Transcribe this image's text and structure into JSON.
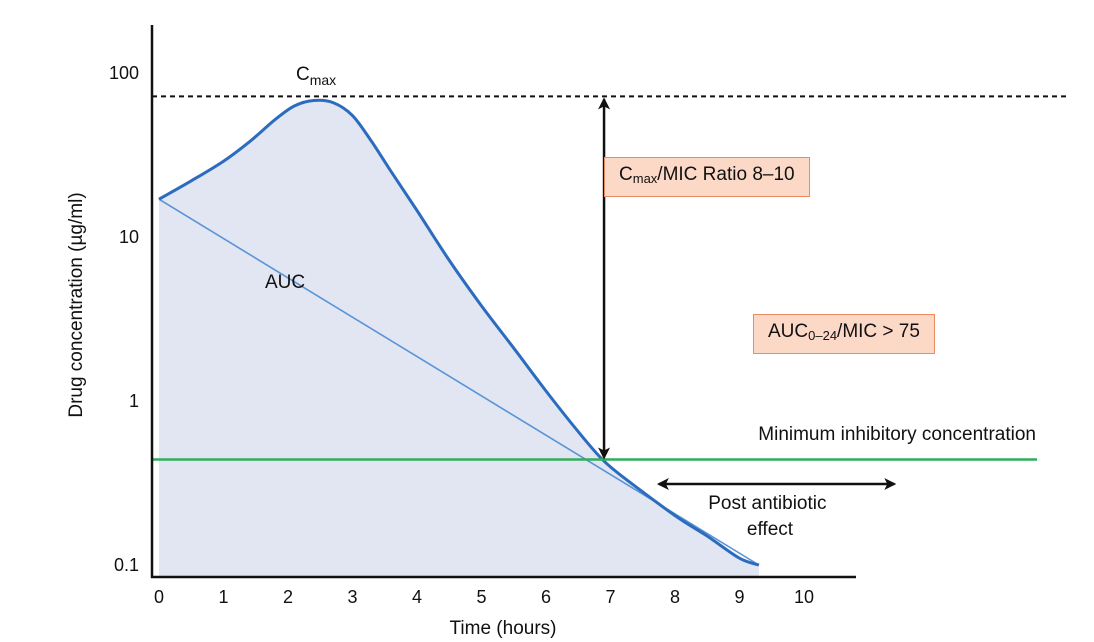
{
  "chart_data": {
    "type": "line",
    "xlabel": "Time (hours)",
    "ylabel": "Drug concentration (µg/ml)",
    "x_ticks": [
      0,
      1,
      2,
      3,
      4,
      5,
      6,
      7,
      8,
      9,
      10
    ],
    "x_tick_labels": [
      "0",
      "1",
      "2",
      "3",
      "4",
      "5",
      "6",
      "7",
      "8",
      "9",
      "10"
    ],
    "y_scale": "log",
    "y_ticks": [
      0.1,
      1,
      10,
      100
    ],
    "y_tick_labels": [
      "0.1",
      "1",
      "10",
      "100"
    ],
    "xlim": [
      -0.1,
      10.7
    ],
    "ylim": [
      0.1,
      200
    ],
    "series": [
      {
        "name": "",
        "style": "concentration-curve",
        "x": [
          0,
          0.5,
          1.0,
          1.4,
          1.8,
          2.1,
          2.4,
          2.7,
          3.0,
          3.3,
          3.6,
          4.0,
          4.5,
          5.0,
          5.5,
          6.0,
          6.5,
          6.9,
          7.3,
          8.0,
          8.5,
          9.0,
          9.3
        ],
        "y": [
          17,
          22,
          29,
          38,
          52,
          63,
          68,
          66,
          55,
          38,
          25,
          14.5,
          7.2,
          3.8,
          2.1,
          1.15,
          0.65,
          0.43,
          0.32,
          0.2,
          0.15,
          0.11,
          0.1
        ]
      },
      {
        "name": "",
        "style": "elimination-line",
        "x": [
          0,
          9.3
        ],
        "y": [
          17,
          0.1
        ]
      }
    ],
    "reference_lines": [
      {
        "label_main": "C",
        "label_sub": "max",
        "y": 72,
        "style": "dashed"
      },
      {
        "label": "Minimum inhibitory concentration",
        "y": 0.44,
        "color": "#2fae5c"
      }
    ],
    "annotations": {
      "auc_label": "AUC",
      "post_antibiotic_label_line1": "Post antibiotic",
      "post_antibiotic_label_line2": "effect",
      "post_antibiotic_span": [
        7.75,
        11.4
      ],
      "cmax_arrow_x": 6.9,
      "cmax_mic_box": {
        "pre": "C",
        "sub": "max",
        "post": "/MIC Ratio 8–10"
      },
      "auc_mic_box": {
        "pre": "AUC",
        "sub": "0–24",
        "post": "/MIC > 75"
      }
    },
    "colors": {
      "curve": "#2b6cbf",
      "elimination_line": "#5a93d6",
      "fill": "#e2e6f3",
      "mic_line": "#2fae5c",
      "box_fill": "#fcd8c6",
      "box_border": "#ee8a62"
    }
  }
}
